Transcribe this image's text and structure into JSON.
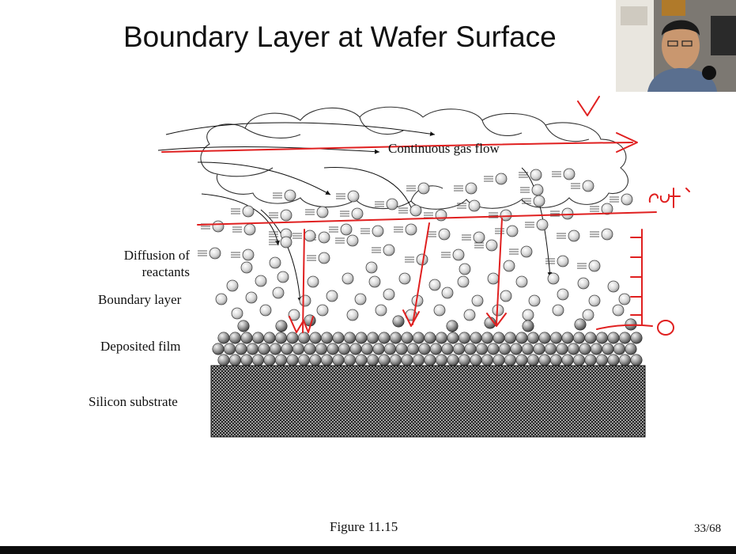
{
  "slide": {
    "title": "Boundary Layer at Wafer Surface",
    "caption": "Figure 11.15",
    "page": "33/68"
  },
  "diagram": {
    "flow_label": "Continuous gas flow",
    "labels": {
      "diffusion_line1": "Diffusion of",
      "diffusion_line2": "reactants",
      "boundary": "Boundary layer",
      "film": "Deposited film",
      "substrate": "Silicon substrate"
    },
    "colors": {
      "annotation": "#e02020",
      "substrate": "#3a3a3a",
      "molecule": "#cfcfcf",
      "film_atom": "#8a8a8a"
    }
  },
  "annotations": {
    "v_mark": "V",
    "zero_mark": "0",
    "right_note": "caß"
  },
  "webcam": {
    "icon": "presenter-video-icon"
  }
}
